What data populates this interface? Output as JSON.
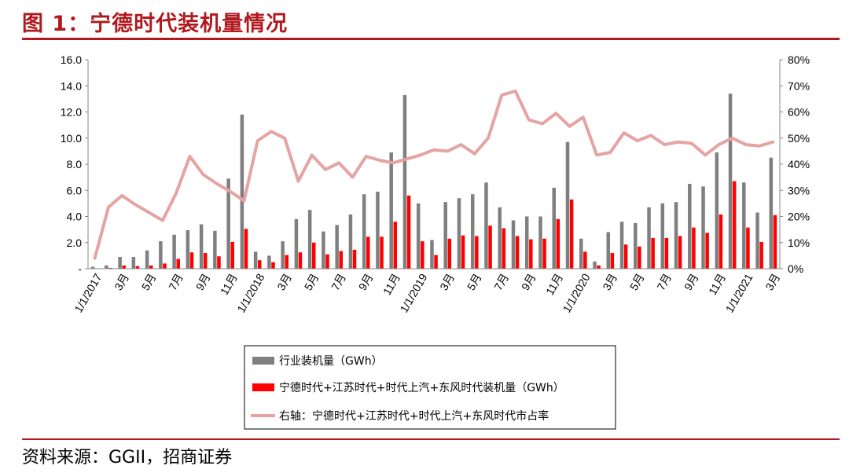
{
  "figure": {
    "title": "图 1：宁德时代装机量情况",
    "source": "资料来源：GGII，招商证券"
  },
  "chart_data": {
    "type": "bar",
    "title": "",
    "xlabel": "",
    "ylabel": "",
    "y_left": {
      "lim": [
        0,
        16
      ],
      "ticks": [
        "-",
        "2.0",
        "4.0",
        "6.0",
        "8.0",
        "10.0",
        "12.0",
        "14.0",
        "16.0"
      ]
    },
    "y_right": {
      "lim": [
        0,
        80
      ],
      "ticks": [
        "0%",
        "10%",
        "20%",
        "30%",
        "40%",
        "50%",
        "60%",
        "70%",
        "80%"
      ]
    },
    "x_tick_labels": [
      {
        "i": 0,
        "label": "1/1/2017"
      },
      {
        "i": 2,
        "label": "3月"
      },
      {
        "i": 4,
        "label": "5月"
      },
      {
        "i": 6,
        "label": "7月"
      },
      {
        "i": 8,
        "label": "9月"
      },
      {
        "i": 10,
        "label": "11月"
      },
      {
        "i": 12,
        "label": "1/1/2018"
      },
      {
        "i": 14,
        "label": "3月"
      },
      {
        "i": 16,
        "label": "5月"
      },
      {
        "i": 18,
        "label": "7月"
      },
      {
        "i": 20,
        "label": "9月"
      },
      {
        "i": 22,
        "label": "11月"
      },
      {
        "i": 24,
        "label": "1/1/2019"
      },
      {
        "i": 26,
        "label": "3月"
      },
      {
        "i": 28,
        "label": "5月"
      },
      {
        "i": 30,
        "label": "7月"
      },
      {
        "i": 32,
        "label": "9月"
      },
      {
        "i": 34,
        "label": "11月"
      },
      {
        "i": 36,
        "label": "1/1/2020"
      },
      {
        "i": 38,
        "label": "3月"
      },
      {
        "i": 40,
        "label": "5月"
      },
      {
        "i": 42,
        "label": "7月"
      },
      {
        "i": 44,
        "label": "9月"
      },
      {
        "i": 46,
        "label": "11月"
      },
      {
        "i": 48,
        "label": "1/1/2021"
      },
      {
        "i": 50,
        "label": "3月"
      }
    ],
    "series": [
      {
        "name": "行业装机量（GWh）",
        "type": "bar",
        "axis": "left",
        "color": "#7f7f7f",
        "values": [
          0.15,
          0.25,
          0.9,
          0.9,
          1.4,
          2.1,
          2.6,
          2.95,
          3.4,
          2.9,
          6.9,
          11.8,
          1.3,
          1.0,
          2.1,
          3.8,
          4.5,
          2.85,
          3.35,
          4.15,
          5.7,
          5.9,
          8.9,
          13.3,
          5.0,
          2.2,
          5.1,
          5.4,
          5.7,
          6.6,
          4.7,
          3.7,
          4.0,
          4.0,
          6.2,
          9.7,
          2.3,
          0.55,
          2.8,
          3.6,
          3.5,
          4.7,
          5.0,
          5.1,
          6.5,
          6.3,
          8.9,
          13.4,
          6.6,
          4.3,
          8.5
        ]
      },
      {
        "name": "宁德时代+江苏时代+时代上汽+东风时代装机量（GWh）",
        "type": "bar",
        "axis": "left",
        "color": "#ff0000",
        "values": [
          0.0,
          0.06,
          0.25,
          0.2,
          0.25,
          0.4,
          0.75,
          1.25,
          1.2,
          0.95,
          2.05,
          3.05,
          0.65,
          0.5,
          1.05,
          1.25,
          2.0,
          1.1,
          1.35,
          1.45,
          2.45,
          2.45,
          3.6,
          5.6,
          2.1,
          1.05,
          2.3,
          2.55,
          2.5,
          3.3,
          3.1,
          2.5,
          2.25,
          2.3,
          3.8,
          5.3,
          1.3,
          0.25,
          1.2,
          1.85,
          1.7,
          2.35,
          2.35,
          2.5,
          3.15,
          2.75,
          4.15,
          6.7,
          3.15,
          2.05,
          4.1
        ]
      },
      {
        "name": "右轴：宁德时代+江苏时代+时代上汽+东风时代市占率",
        "type": "line",
        "axis": "right",
        "color": "#e6a3a3",
        "values": [
          4,
          23.5,
          28,
          24.5,
          21.5,
          18.5,
          29,
          43,
          36,
          32.5,
          29.5,
          26,
          49,
          52.5,
          50,
          33.5,
          43.5,
          38,
          40.5,
          35,
          43,
          41.5,
          40.5,
          42,
          43.5,
          45.5,
          45,
          47.5,
          44,
          50,
          66.5,
          68,
          57,
          55.5,
          59.5,
          54.5,
          58,
          43.5,
          44.5,
          52,
          49,
          51,
          47.5,
          48.5,
          48,
          43.5,
          47.5,
          50,
          47.5,
          47,
          48.5
        ]
      }
    ],
    "legend": {
      "position": "bottom-center",
      "boxed": true
    },
    "grid": false
  }
}
